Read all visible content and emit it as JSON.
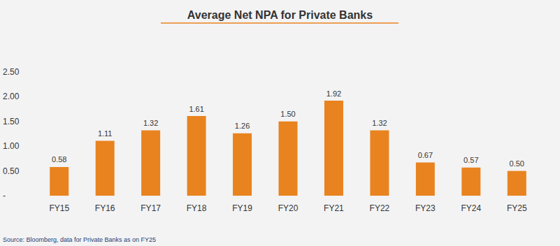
{
  "chart_data": {
    "type": "bar",
    "title": "Average Net NPA for Private Banks",
    "source": "Source: Bloomberg, data for Private Banks as on FY25",
    "categories": [
      "FY15",
      "FY16",
      "FY17",
      "FY18",
      "FY19",
      "FY20",
      "FY21",
      "FY22",
      "FY23",
      "FY24",
      "FY25"
    ],
    "values": [
      0.58,
      1.11,
      1.32,
      1.61,
      1.26,
      1.5,
      1.92,
      1.32,
      0.67,
      0.57,
      0.5
    ],
    "value_labels": [
      "0.58",
      "1.11",
      "1.32",
      "1.61",
      "1.26",
      "1.50",
      "1.92",
      "1.32",
      "0.67",
      "0.57",
      "0.50"
    ],
    "color": "#e8831f",
    "ylim": [
      0,
      2.5
    ],
    "yticks": [
      {
        "value": 0,
        "label": "-"
      },
      {
        "value": 0.5,
        "label": "0.50"
      },
      {
        "value": 1,
        "label": "1.00"
      },
      {
        "value": 1.5,
        "label": "1.50"
      },
      {
        "value": 2,
        "label": "2.00"
      },
      {
        "value": 2.5,
        "label": "2.50"
      }
    ],
    "grid": false,
    "data_labels": true
  }
}
